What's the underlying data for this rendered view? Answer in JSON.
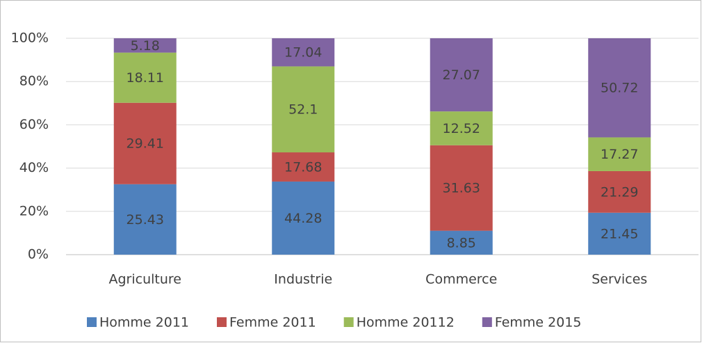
{
  "chart_data": {
    "type": "bar",
    "stacking": "percent",
    "categories": [
      "Agriculture",
      "Industrie",
      "Commerce",
      "Services"
    ],
    "series": [
      {
        "name": "Homme 2011",
        "color": "#4f81bd",
        "values": [
          25.43,
          44.28,
          8.85,
          21.45
        ]
      },
      {
        "name": "Femme 2011",
        "color": "#c0504d",
        "values": [
          29.41,
          17.68,
          31.63,
          21.29
        ]
      },
      {
        "name": "Homme 20112",
        "color": "#9bbb59",
        "values": [
          18.11,
          52.1,
          12.52,
          17.27
        ]
      },
      {
        "name": "Femme 2015",
        "color": "#8064a2",
        "values": [
          5.18,
          17.04,
          27.07,
          50.72
        ]
      }
    ],
    "ylim": [
      0,
      100
    ],
    "yticks": [
      {
        "value": 0,
        "label": "0%"
      },
      {
        "value": 20,
        "label": "20%"
      },
      {
        "value": 40,
        "label": "40%"
      },
      {
        "value": 60,
        "label": "60%"
      },
      {
        "value": 80,
        "label": "80%"
      },
      {
        "value": 100,
        "label": "100%"
      }
    ],
    "grid": true,
    "legend": "bottom"
  }
}
